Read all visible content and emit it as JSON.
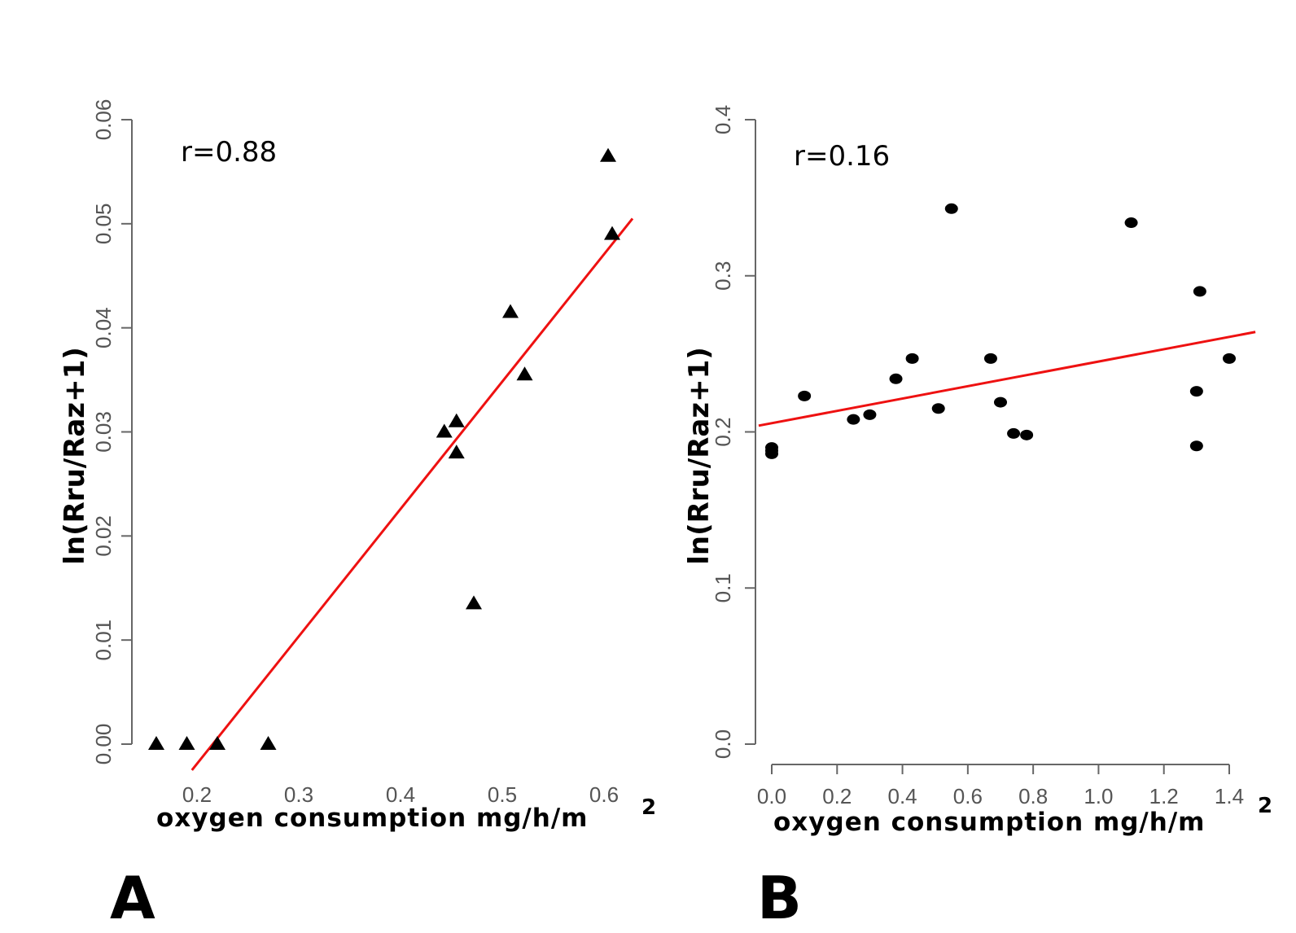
{
  "chart_data": [
    {
      "type": "scatter",
      "panel": "A",
      "annotation": "r=0.88",
      "xlabel": "oxygen consumption mg/h/m",
      "xlabel_sup": "2",
      "ylabel": "ln(Rru/Raz+1)",
      "xticks": [
        "0.2",
        "0.3",
        "0.4",
        "0.5",
        "0.6"
      ],
      "yticks": [
        "0.00",
        "0.01",
        "0.02",
        "0.03",
        "0.04",
        "0.05",
        "0.06"
      ],
      "xtick_values": [
        0.2,
        0.3,
        0.4,
        0.5,
        0.6
      ],
      "ytick_values": [
        0,
        0.01,
        0.02,
        0.03,
        0.04,
        0.05,
        0.06
      ],
      "xlim": [
        0.14,
        0.63
      ],
      "ylim": [
        0,
        0.06
      ],
      "marker": "triangle",
      "marker_color": "#000000",
      "line_color": "#ee1111",
      "x": [
        0.16,
        0.19,
        0.22,
        0.27,
        0.443,
        0.455,
        0.455,
        0.472,
        0.508,
        0.522,
        0.604,
        0.608
      ],
      "y": [
        0.0,
        0.0,
        0.0,
        0.0,
        0.03,
        0.031,
        0.028,
        0.0135,
        0.0415,
        0.0355,
        0.0565,
        0.049
      ],
      "fit_line": {
        "x": [
          0.195,
          0.628
        ],
        "y": [
          -0.0025,
          0.0505
        ]
      }
    },
    {
      "type": "scatter",
      "panel": "B",
      "annotation": "r=0.16",
      "xlabel": "oxygen consumption mg/h/m",
      "xlabel_sup": "2",
      "ylabel": "ln(Rru/Raz+1)",
      "xticks": [
        "0.0",
        "0.2",
        "0.4",
        "0.6",
        "0.8",
        "1.0",
        "1.2",
        "1.4"
      ],
      "yticks": [
        "0.0",
        "0.1",
        "0.2",
        "0.3",
        "0.4"
      ],
      "xtick_values": [
        0,
        0.2,
        0.4,
        0.6,
        0.8,
        1.0,
        1.2,
        1.4
      ],
      "ytick_values": [
        0,
        0.1,
        0.2,
        0.3,
        0.4
      ],
      "xlim": [
        -0.04,
        1.44
      ],
      "ylim": [
        0,
        0.4
      ],
      "marker": "circle",
      "marker_color": "#000000",
      "line_color": "#ee1111",
      "x": [
        0.0,
        0.0,
        0.0,
        0.1,
        0.25,
        0.3,
        0.38,
        0.43,
        0.51,
        0.55,
        0.67,
        0.7,
        0.74,
        0.78,
        1.1,
        1.3,
        1.3,
        1.31,
        1.4
      ],
      "y": [
        0.19,
        0.188,
        0.186,
        0.223,
        0.208,
        0.211,
        0.234,
        0.247,
        0.215,
        0.343,
        0.247,
        0.219,
        0.199,
        0.198,
        0.334,
        0.226,
        0.191,
        0.29,
        0.247
      ],
      "fit_line": {
        "x": [
          -0.04,
          1.48
        ],
        "y": [
          0.204,
          0.264
        ]
      }
    }
  ]
}
